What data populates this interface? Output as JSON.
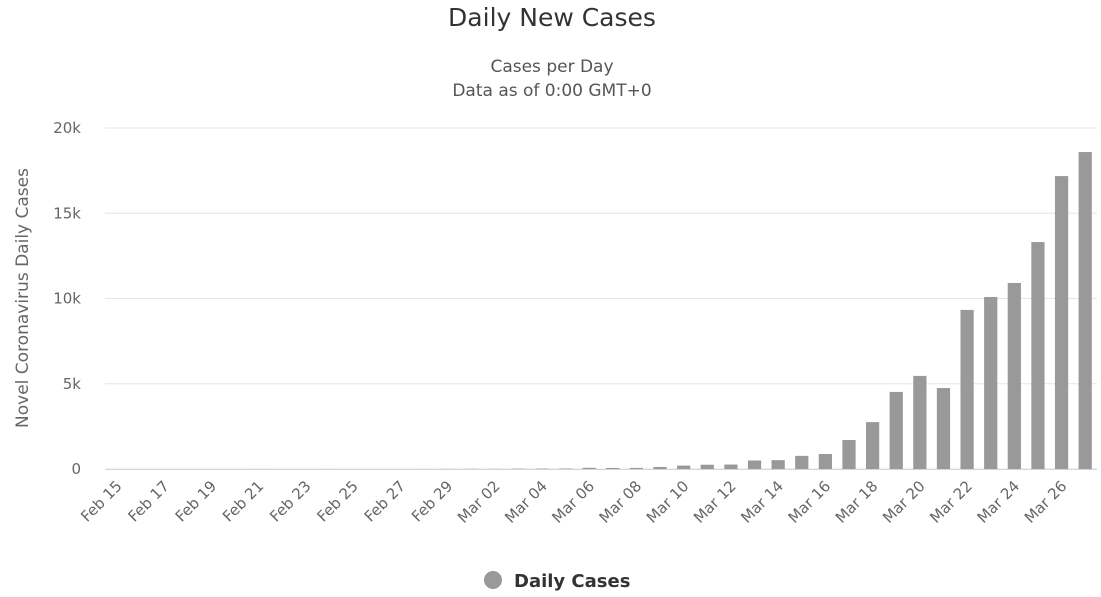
{
  "chart_data": {
    "type": "bar",
    "title": "Daily New Cases",
    "subtitle": [
      "Cases per Day",
      "Data as of 0:00 GMT+0"
    ],
    "y_label": "Novel Coronavirus Daily Cases",
    "categories": [
      "Feb 15",
      null,
      "Feb 17",
      null,
      "Feb 19",
      null,
      "Feb 21",
      null,
      "Feb 23",
      null,
      "Feb 25",
      null,
      "Feb 27",
      null,
      "Feb 29",
      null,
      "Mar 02",
      null,
      "Mar 04",
      null,
      "Mar 06",
      null,
      "Mar 08",
      null,
      "Mar 10",
      null,
      "Mar 12",
      null,
      "Mar 14",
      null,
      "Mar 16",
      null,
      "Mar 18",
      null,
      "Mar 20",
      null,
      "Mar 22",
      null,
      "Mar 24",
      null,
      "Mar 26",
      null
    ],
    "series": [
      {
        "name": "Daily Cases",
        "color": "#999999",
        "values": [
          0,
          0,
          0,
          0,
          0,
          0,
          2,
          0,
          0,
          1,
          0,
          0,
          0,
          2,
          7,
          9,
          8,
          20,
          25,
          30,
          70,
          60,
          65,
          120,
          200,
          250,
          260,
          500,
          520,
          770,
          880,
          1700,
          2750,
          4520,
          5460,
          4750,
          9330,
          10090,
          10910,
          13310,
          17180,
          18590
        ]
      }
    ],
    "ylim": [
      0,
      20000
    ],
    "yticks": [
      0,
      {
        "value": 5000,
        "label": "5k"
      },
      {
        "value": 10000,
        "label": "10k"
      },
      {
        "value": 15000,
        "label": "15k"
      },
      {
        "value": 20000,
        "label": "20k"
      }
    ],
    "grid": true,
    "legend": "bottom"
  }
}
